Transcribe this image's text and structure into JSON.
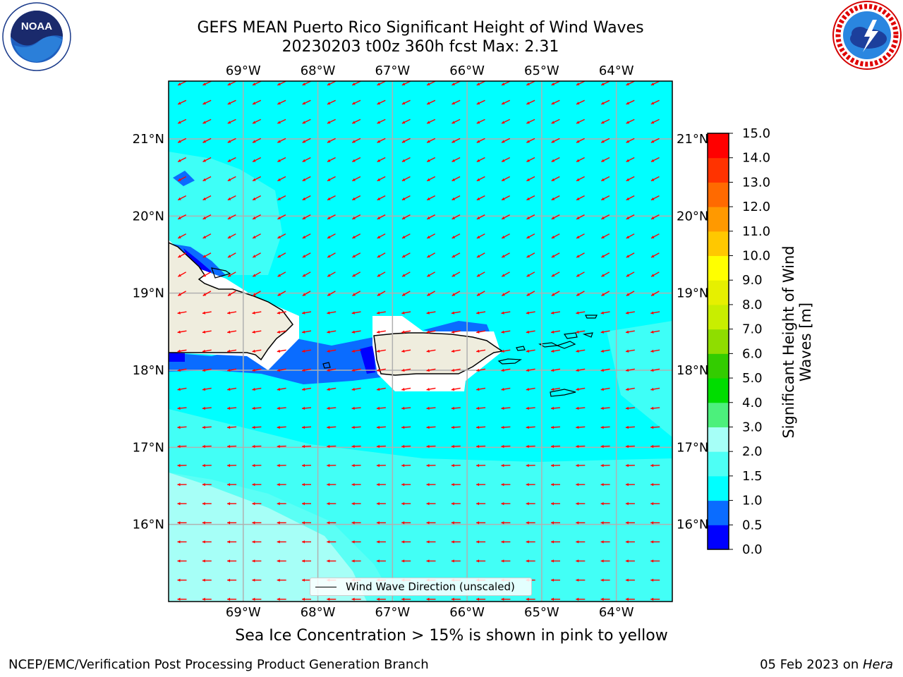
{
  "title_line1": "GEFS MEAN Puerto Rico Significant Height of Wind Waves",
  "title_line2": "20230203 t00z 360h fcst   Max: 2.31",
  "lon_labels": [
    "69°W",
    "68°W",
    "67°W",
    "66°W",
    "65°W",
    "64°W"
  ],
  "lon_values": [
    -69,
    -68,
    -67,
    -66,
    -65,
    -64
  ],
  "lat_labels": [
    "21°N",
    "20°N",
    "19°N",
    "18°N",
    "17°N",
    "16°N"
  ],
  "lat_values": [
    21,
    20,
    19,
    18,
    17,
    16
  ],
  "map_extent": {
    "lon_min": -70.0,
    "lon_max": -63.25,
    "lat_min": 15.0,
    "lat_max": 21.75
  },
  "legend_label": "Wind Wave Direction (unscaled)",
  "colorbar": {
    "label": "Significant Height of Wind Waves [m]",
    "ticks": [
      "0.0",
      "0.5",
      "1.0",
      "1.5",
      "2.0",
      "3.0",
      "4.0",
      "5.0",
      "6.0",
      "7.0",
      "8.0",
      "9.0",
      "10.0",
      "11.0",
      "12.0",
      "13.0",
      "14.0",
      "15.0"
    ],
    "colors": [
      "#0000ff",
      "#0a6cff",
      "#00ffff",
      "#4dfff5",
      "#a6fff7",
      "#4cf07c",
      "#00dd00",
      "#33cc00",
      "#8fdd00",
      "#c8ee00",
      "#e6f000",
      "#ffff00",
      "#ffc800",
      "#ff9900",
      "#ff6a00",
      "#ff3300",
      "#ff0000"
    ]
  },
  "wave_arrow_color": "#ff0000",
  "subtitle": "Sea Ice Concentration > 15% is shown in pink to yellow",
  "footer_left": "NCEP/EMC/Verification Post Processing Product Generation Branch",
  "footer_date": "05 Feb 2023 on ",
  "footer_machine": "Hera",
  "logos": {
    "left": "noaa-logo",
    "right": "nws-logo",
    "left_text": "NOAA"
  },
  "chart_data": {
    "type": "heatmap",
    "title": "GEFS MEAN Puerto Rico Significant Height of Wind Waves",
    "subtitle": "20230203 t00z 360h fcst   Max: 2.31",
    "variable": "Significant Height of Wind Waves [m]",
    "max_value": 2.31,
    "levels": [
      0.0,
      0.5,
      1.0,
      1.5,
      2.0,
      3.0,
      4.0,
      5.0,
      6.0,
      7.0,
      8.0,
      9.0,
      10.0,
      11.0,
      12.0,
      13.0,
      14.0,
      15.0
    ],
    "dominant_range": [
      1.0,
      2.5
    ],
    "wave_direction": "toward southwest in the north, toward west in the south"
  }
}
